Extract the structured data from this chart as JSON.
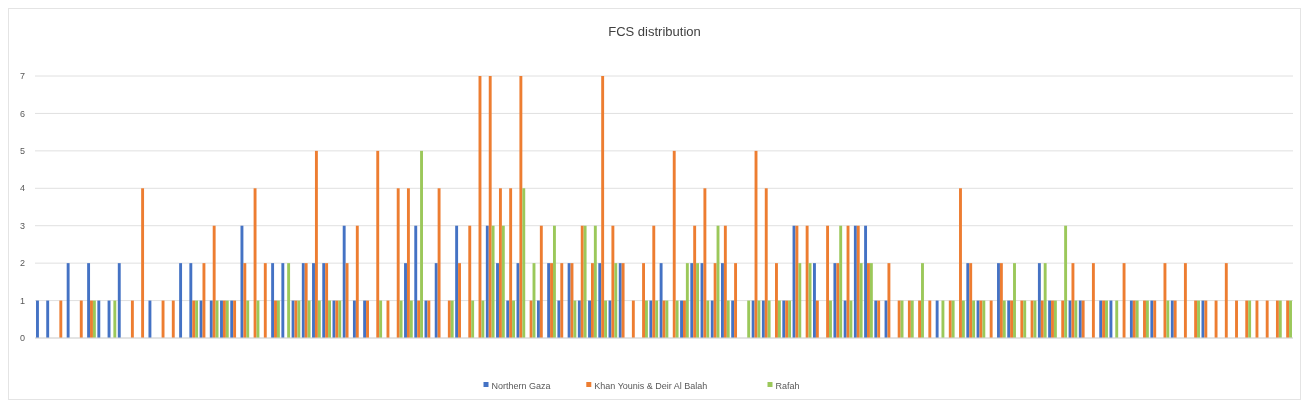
{
  "chart_data": {
    "type": "bar",
    "title": "FCS distribution",
    "categories": [
      null,
      null,
      null,
      null,
      null,
      null,
      null,
      null,
      null,
      null,
      null,
      null,
      null,
      null,
      null,
      null,
      null,
      null,
      null,
      null,
      null,
      null,
      null,
      null,
      null,
      null,
      null,
      null,
      null,
      null,
      null,
      null,
      null,
      null,
      null,
      null,
      null,
      null,
      null,
      null,
      null,
      null,
      null,
      null,
      null,
      null,
      null,
      null,
      null,
      null,
      null,
      null,
      null,
      null,
      null,
      null,
      null,
      null,
      null,
      null,
      null,
      null,
      null,
      null,
      null,
      null,
      null,
      null,
      null,
      null,
      null,
      null,
      null,
      null,
      null,
      null,
      null,
      null,
      null,
      null,
      null,
      null,
      null,
      null,
      null,
      null,
      null,
      null,
      null,
      null,
      null,
      null,
      null,
      null,
      null,
      null,
      null,
      null,
      null,
      null,
      null,
      null,
      null,
      null,
      null,
      null,
      null,
      null,
      null,
      null,
      null,
      null,
      null,
      null,
      null,
      null,
      null,
      null,
      null,
      null,
      null,
      null,
      null
    ],
    "series": [
      {
        "name": "Northern Gaza",
        "color": "#4472c4",
        "values": [
          1,
          1,
          0,
          2,
          0,
          2,
          1,
          1,
          2,
          0,
          0,
          1,
          0,
          0,
          2,
          2,
          1,
          1,
          1,
          1,
          3,
          0,
          0,
          2,
          2,
          1,
          2,
          2,
          2,
          1,
          3,
          1,
          1,
          0,
          0,
          0,
          2,
          3,
          1,
          2,
          0,
          3,
          0,
          0,
          3,
          2,
          1,
          2,
          0,
          1,
          2,
          1,
          2,
          1,
          1,
          2,
          1,
          2,
          0,
          0,
          1,
          2,
          0,
          1,
          2,
          2,
          1,
          2,
          1,
          0,
          1,
          1,
          0,
          1,
          3,
          0,
          2,
          0,
          2,
          1,
          3,
          3,
          1,
          1,
          0,
          0,
          0,
          0,
          1,
          0,
          0,
          2,
          1,
          0,
          2,
          1,
          0,
          0,
          2,
          1,
          0,
          1,
          1,
          0,
          1,
          1,
          0,
          1,
          0,
          1,
          0,
          1,
          0,
          0,
          1,
          0,
          0,
          0,
          0,
          0,
          0,
          0,
          0
        ]
      },
      {
        "name": "Khan Younis & Deir Al Balah",
        "color": "#ed7d31",
        "values": [
          0,
          0,
          1,
          0,
          1,
          1,
          0,
          0,
          0,
          1,
          4,
          0,
          1,
          1,
          0,
          1,
          2,
          3,
          1,
          1,
          2,
          4,
          2,
          1,
          0,
          1,
          2,
          5,
          2,
          1,
          2,
          3,
          1,
          5,
          1,
          4,
          4,
          1,
          1,
          4,
          1,
          2,
          3,
          7,
          7,
          4,
          4,
          7,
          1,
          3,
          2,
          2,
          2,
          3,
          2,
          7,
          3,
          2,
          1,
          2,
          3,
          1,
          5,
          1,
          3,
          4,
          2,
          3,
          2,
          0,
          5,
          4,
          2,
          1,
          3,
          3,
          1,
          3,
          2,
          3,
          3,
          2,
          1,
          2,
          1,
          1,
          1,
          1,
          0,
          1,
          4,
          2,
          1,
          1,
          2,
          1,
          1,
          1,
          1,
          1,
          1,
          2,
          1,
          2,
          1,
          0,
          2,
          1,
          1,
          1,
          2,
          1,
          2,
          1,
          1,
          1,
          2,
          1,
          1,
          1,
          1,
          1,
          1
        ]
      },
      {
        "name": "Rafah",
        "color": "#9bc85a",
        "values": [
          0,
          0,
          0,
          0,
          0,
          1,
          0,
          1,
          0,
          0,
          0,
          0,
          0,
          0,
          0,
          1,
          0,
          1,
          1,
          0,
          1,
          1,
          0,
          1,
          2,
          1,
          1,
          1,
          1,
          1,
          0,
          0,
          0,
          1,
          0,
          1,
          1,
          5,
          0,
          0,
          1,
          0,
          1,
          1,
          3,
          3,
          1,
          4,
          2,
          0,
          3,
          0,
          1,
          3,
          3,
          1,
          2,
          0,
          0,
          1,
          1,
          1,
          1,
          2,
          2,
          1,
          3,
          1,
          0,
          1,
          1,
          1,
          1,
          1,
          2,
          2,
          0,
          1,
          3,
          1,
          2,
          2,
          0,
          0,
          1,
          1,
          2,
          0,
          1,
          1,
          1,
          1,
          1,
          0,
          1,
          2,
          1,
          1,
          2,
          1,
          3,
          1,
          0,
          0,
          1,
          1,
          0,
          1,
          1,
          0,
          1,
          0,
          0,
          1,
          0,
          0,
          0,
          0,
          1,
          0,
          0,
          1,
          1
        ]
      }
    ],
    "ylim": [
      0,
      7
    ],
    "yticks": [
      0,
      1,
      2,
      3,
      4,
      5,
      6,
      7
    ],
    "grid": "y",
    "legend": "bottom"
  }
}
